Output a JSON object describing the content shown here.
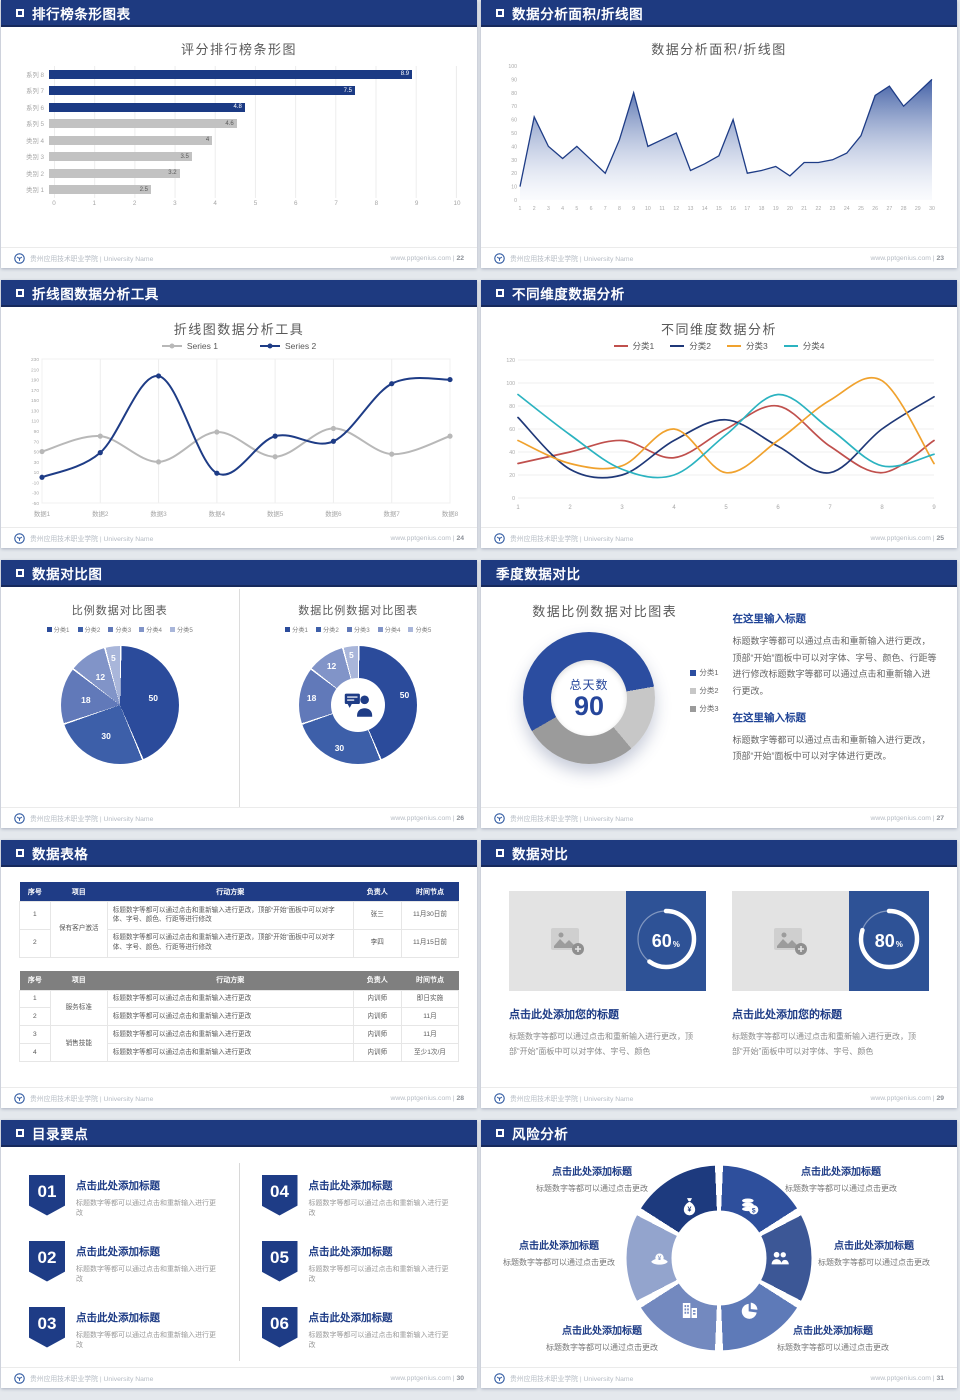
{
  "colors": {
    "header_navy": "#1e3a80",
    "bar_navy": "#1b3a84",
    "bar_gray": "#c2c2c2",
    "accent_blue": "#2e5296",
    "title_gray": "#595959",
    "pie_blues": [
      "#2b4b9b",
      "#3d5fa9",
      "#6179b9",
      "#8194c8",
      "#a9b6da"
    ],
    "wheel_blues": [
      "#1d3a7e",
      "#2e4f9c",
      "#3c5796",
      "#5e7ab8",
      "#7389bf",
      "#93a4cd"
    ]
  },
  "footer": {
    "school": "贵州应用技术职业学院 | University Name",
    "site": "www.pptgenius.com"
  },
  "slides": [
    {
      "header": "排行榜条形图表",
      "bullet": true,
      "page": "22"
    },
    {
      "header": "数据分析面积/折线图",
      "bullet": true,
      "page": "23"
    },
    {
      "header": "折线图数据分析工具",
      "bullet": true,
      "page": "24"
    },
    {
      "header": "不同维度数据分析",
      "bullet": true,
      "page": "25"
    },
    {
      "header": "数据对比图",
      "bullet": true,
      "page": "26"
    },
    {
      "header": "季度数据对比",
      "bullet": false,
      "page": "27",
      "blocks": [
        {
          "heading": "在这里输入标题",
          "body": "标题数字等都可以通过点击和重新输入进行更改，顶部“开始”面板中可以对字体、字号、颜色、行距等进行修改标题数字等都可以通过点击和重新输入进行更改。"
        },
        {
          "heading": "在这里输入标题",
          "body": "标题数字等都可以通过点击和重新输入进行更改，顶部“开始”面板中可以对字体进行更改。"
        }
      ]
    },
    {
      "header": "数据表格",
      "bullet": true,
      "page": "28",
      "tables": [
        {
          "style": "navy",
          "columns": [
            "序号",
            "项目",
            "行动方案",
            "负责人",
            "时间节点"
          ],
          "rows": [
            [
              "1",
              {
                "text": "保有客户激活",
                "span": 2
              },
              "标题数字等都可以通过点击和重新输入进行更改，顶部“开始”面板中可以对字体、字号、颜色、行距等进行修改",
              "张三",
              "11月30日前"
            ],
            [
              "2",
              null,
              "标题数字等都可以通过点击和重新输入进行更改，顶部“开始”面板中可以对字体、字号、颜色、行距等进行修改",
              "李四",
              "11月15日前"
            ]
          ]
        },
        {
          "style": "gray",
          "columns": [
            "序号",
            "项目",
            "行动方案",
            "负责人",
            "时间节点"
          ],
          "rows": [
            [
              "1",
              {
                "text": "服务标准",
                "span": 2
              },
              "标题数字等都可以通过点击和重新输入进行更改",
              "内训师",
              "即日实施"
            ],
            [
              "2",
              null,
              "标题数字等都可以通过点击和重新输入进行更改",
              "内训师",
              "11月"
            ],
            [
              "3",
              {
                "text": "销售技能",
                "span": 2
              },
              "标题数字等都可以通过点击和重新输入进行更改",
              "内训师",
              "11月"
            ],
            [
              "4",
              null,
              "标题数字等都可以通过点击和重新输入进行更改",
              "内训师",
              "至少1次/月"
            ]
          ]
        }
      ]
    },
    {
      "header": "数据对比",
      "bullet": true,
      "page": "29",
      "cards": [
        {
          "percent": "60",
          "title": "点击此处添加您的标题",
          "body": "标题数字等都可以通过点击和重新输入进行更改，顶部“开始”面板中可以对字体、字号、颜色"
        },
        {
          "percent": "80",
          "title": "点击此处添加您的标题",
          "body": "标题数字等都可以通过点击和重新输入进行更改，顶部“开始”面板中可以对字体、字号、颜色"
        }
      ]
    },
    {
      "header": "目录要点",
      "bullet": true,
      "page": "30",
      "items": [
        {
          "num": "01",
          "title": "点击此处添加标题",
          "body": "标题数字等都可以通过点击和重新输入进行更改"
        },
        {
          "num": "02",
          "title": "点击此处添加标题",
          "body": "标题数字等都可以通过点击和重新输入进行更改"
        },
        {
          "num": "03",
          "title": "点击此处添加标题",
          "body": "标题数字等都可以通过点击和重新输入进行更改"
        },
        {
          "num": "04",
          "title": "点击此处添加标题",
          "body": "标题数字等都可以通过点击和重新输入进行更改"
        },
        {
          "num": "05",
          "title": "点击此处添加标题",
          "body": "标题数字等都可以通过点击和重新输入进行更改"
        },
        {
          "num": "06",
          "title": "点击此处添加标题",
          "body": "标题数字等都可以通过点击和重新输入进行更改"
        }
      ]
    },
    {
      "header": "风险分析",
      "bullet": true,
      "page": "31",
      "items": [
        {
          "icon": "money-bag",
          "title": "点击此处添加标题",
          "body": "标题数字等都可以通过点击更改"
        },
        {
          "icon": "coins",
          "title": "点击此处添加标题",
          "body": "标题数字等都可以通过点击更改"
        },
        {
          "icon": "money-hat",
          "title": "点击此处添加标题",
          "body": "标题数字等都可以通过点击更改"
        },
        {
          "icon": "people",
          "title": "点击此处添加标题",
          "body": "标题数字等都可以通过点击更改"
        },
        {
          "icon": "building",
          "title": "点击此处添加标题",
          "body": "标题数字等都可以通过点击更改"
        },
        {
          "icon": "pie-chart",
          "title": "点击此处添加标题",
          "body": "标题数字等都可以通过点击更改"
        }
      ]
    }
  ],
  "chart_data": [
    {
      "slide": 1,
      "type": "bar",
      "orientation": "horizontal",
      "title": "评分排行榜条形图",
      "categories": [
        "系列 8",
        "系列 7",
        "系列 6",
        "系列 5",
        "类别 4",
        "类别 3",
        "类别 2",
        "类别 1"
      ],
      "values": [
        8.9,
        7.5,
        4.8,
        4.6,
        4,
        3.5,
        3.2,
        2.5
      ],
      "bar_colors": [
        "navy",
        "navy",
        "navy",
        "gray",
        "gray",
        "gray",
        "gray",
        "gray"
      ],
      "xlim": [
        0,
        10
      ],
      "x_ticks": [
        0,
        1,
        2,
        3,
        4,
        5,
        6,
        7,
        8,
        9,
        10
      ],
      "grid": true
    },
    {
      "slide": 2,
      "type": "area",
      "title": "数据分析面积/折线图",
      "x": [
        1,
        2,
        3,
        4,
        5,
        6,
        7,
        8,
        9,
        10,
        11,
        12,
        13,
        14,
        15,
        16,
        17,
        18,
        19,
        20,
        21,
        22,
        23,
        24,
        25,
        26,
        27,
        28,
        29,
        30
      ],
      "values": [
        10,
        62,
        40,
        31,
        40,
        30,
        20,
        45,
        80,
        40,
        45,
        50,
        22,
        27,
        33,
        60,
        20,
        22,
        25,
        18,
        28,
        28,
        30,
        35,
        48,
        78,
        85,
        70,
        80,
        90
      ],
      "ylim": [
        0,
        100
      ],
      "y_step": 10,
      "line_color": "#1e3c86"
    },
    {
      "slide": 3,
      "type": "line",
      "title": "折线图数据分析工具",
      "categories": [
        "数据1",
        "数据2",
        "数据3",
        "数据4",
        "数据5",
        "数据6",
        "数据7",
        "数据8"
      ],
      "ylim": [
        -50,
        230
      ],
      "y_step": 20,
      "smooth": true,
      "markers": true,
      "legend_position": "top",
      "series": [
        {
          "name": "Series 1",
          "color": "#b8b8b8",
          "values": [
            50,
            80,
            30,
            88,
            40,
            95,
            45,
            80
          ]
        },
        {
          "name": "Series 2",
          "color": "#1e3c86",
          "values": [
            0,
            48,
            197,
            8,
            80,
            70,
            182,
            190
          ]
        }
      ]
    },
    {
      "slide": 4,
      "type": "line",
      "title": "不同维度数据分析",
      "x": [
        1,
        2,
        3,
        4,
        5,
        6,
        7,
        8,
        9
      ],
      "ylim": [
        0,
        120
      ],
      "y_step": 20,
      "smooth": true,
      "markers": false,
      "legend_position": "top",
      "series": [
        {
          "name": "分类1",
          "color": "#c0504d",
          "values": [
            30,
            40,
            50,
            35,
            60,
            80,
            45,
            22,
            50
          ]
        },
        {
          "name": "分类2",
          "color": "#1f3878",
          "values": [
            70,
            25,
            20,
            50,
            68,
            45,
            22,
            60,
            88
          ]
        },
        {
          "name": "分类3",
          "color": "#f0a22e",
          "values": [
            50,
            30,
            28,
            60,
            22,
            50,
            85,
            102,
            30
          ]
        },
        {
          "name": "分类4",
          "color": "#2bb3c0",
          "values": [
            90,
            55,
            25,
            20,
            55,
            90,
            60,
            28,
            38
          ]
        }
      ]
    },
    {
      "slide": 5,
      "type": "pie",
      "title": "比例数据对比图表",
      "labels": [
        "分类1",
        "分类2",
        "分类3",
        "分类4",
        "分类5"
      ],
      "values": [
        50,
        30,
        18,
        12,
        5
      ],
      "colors": [
        "#2b4b9b",
        "#3d5fa9",
        "#6179b9",
        "#8194c8",
        "#a9b6da"
      ]
    },
    {
      "slide": 5,
      "type": "donut",
      "title": "数据比例数据对比图表",
      "labels": [
        "分类1",
        "分类2",
        "分类3",
        "分类4",
        "分类5"
      ],
      "values": [
        50,
        30,
        18,
        12,
        5
      ],
      "colors": [
        "#2b4b9b",
        "#3d5fa9",
        "#6179b9",
        "#8194c8",
        "#a9b6da"
      ],
      "center_icon": "person-chat"
    },
    {
      "slide": 6,
      "type": "donut",
      "title": "数据比例数据对比图表",
      "labels": [
        "分类1",
        "分类2",
        "分类3"
      ],
      "values": [
        50,
        15,
        25
      ],
      "colors": [
        "#2b4da0",
        "#c7c7c7",
        "#9b9b9b"
      ],
      "start_angle": 240,
      "center_label": "总天数",
      "center_value": "90"
    },
    {
      "slide": 8,
      "type": "progress-ring",
      "values": [
        60,
        80
      ],
      "unit": "%"
    }
  ]
}
